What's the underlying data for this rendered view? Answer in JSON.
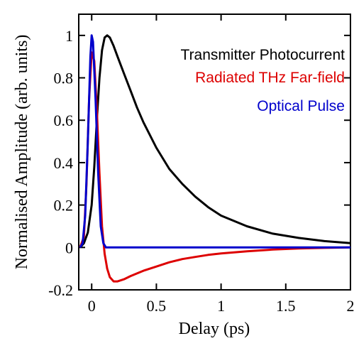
{
  "chart_data": {
    "type": "line",
    "title": "",
    "xlabel": "Delay (ps)",
    "ylabel": "Normalised Amplitude (arb. units)",
    "xlim": [
      -0.1,
      2.0
    ],
    "ylim": [
      -0.2,
      1.1
    ],
    "xticks": [
      0,
      0.5,
      1,
      1.5,
      2
    ],
    "xtick_labels": [
      "0",
      "0.5",
      "1",
      "1.5",
      "2"
    ],
    "yticks": [
      -0.2,
      0,
      0.2,
      0.4,
      0.6,
      0.8,
      1
    ],
    "ytick_labels": [
      "-0.2",
      "0",
      "0.2",
      "0.4",
      "0.6",
      "0.8",
      "1"
    ],
    "grid": false,
    "legend_position": "top-right",
    "series": [
      {
        "name": "Transmitter Photocurrent",
        "color": "#000000",
        "x": [
          -0.09,
          -0.06,
          -0.03,
          0.0,
          0.02,
          0.04,
          0.06,
          0.08,
          0.1,
          0.12,
          0.14,
          0.17,
          0.2,
          0.25,
          0.3,
          0.35,
          0.4,
          0.5,
          0.6,
          0.7,
          0.8,
          0.9,
          1.0,
          1.2,
          1.4,
          1.6,
          1.8,
          2.0
        ],
        "y": [
          0.0,
          0.02,
          0.07,
          0.2,
          0.38,
          0.6,
          0.8,
          0.93,
          0.99,
          1.0,
          0.99,
          0.95,
          0.9,
          0.82,
          0.74,
          0.66,
          0.59,
          0.47,
          0.37,
          0.3,
          0.24,
          0.19,
          0.15,
          0.1,
          0.065,
          0.045,
          0.03,
          0.02
        ]
      },
      {
        "name": "Radiated THz Far-field",
        "color": "#dd0000",
        "x": [
          -0.09,
          -0.06,
          -0.04,
          -0.02,
          0.0,
          0.02,
          0.04,
          0.06,
          0.08,
          0.1,
          0.12,
          0.14,
          0.17,
          0.2,
          0.25,
          0.3,
          0.4,
          0.5,
          0.6,
          0.7,
          0.8,
          0.9,
          1.0,
          1.2,
          1.4,
          1.6,
          1.8,
          2.0
        ],
        "y": [
          0.0,
          0.05,
          0.3,
          0.7,
          0.92,
          0.88,
          0.65,
          0.35,
          0.1,
          -0.03,
          -0.1,
          -0.14,
          -0.16,
          -0.16,
          -0.15,
          -0.135,
          -0.11,
          -0.09,
          -0.07,
          -0.055,
          -0.045,
          -0.035,
          -0.028,
          -0.018,
          -0.01,
          -0.005,
          -0.002,
          0.0
        ]
      },
      {
        "name": "Optical Pulse",
        "color": "#0000cc",
        "x": [
          -0.09,
          -0.07,
          -0.05,
          -0.03,
          -0.01,
          0.0,
          0.01,
          0.03,
          0.05,
          0.07,
          0.09,
          0.11,
          0.13,
          0.5,
          1.0,
          1.5,
          2.0
        ],
        "y": [
          0.0,
          0.02,
          0.15,
          0.5,
          0.9,
          1.0,
          0.97,
          0.7,
          0.35,
          0.1,
          0.02,
          0.0,
          0.0,
          0.0,
          0.0,
          0.0,
          0.0
        ]
      }
    ]
  }
}
